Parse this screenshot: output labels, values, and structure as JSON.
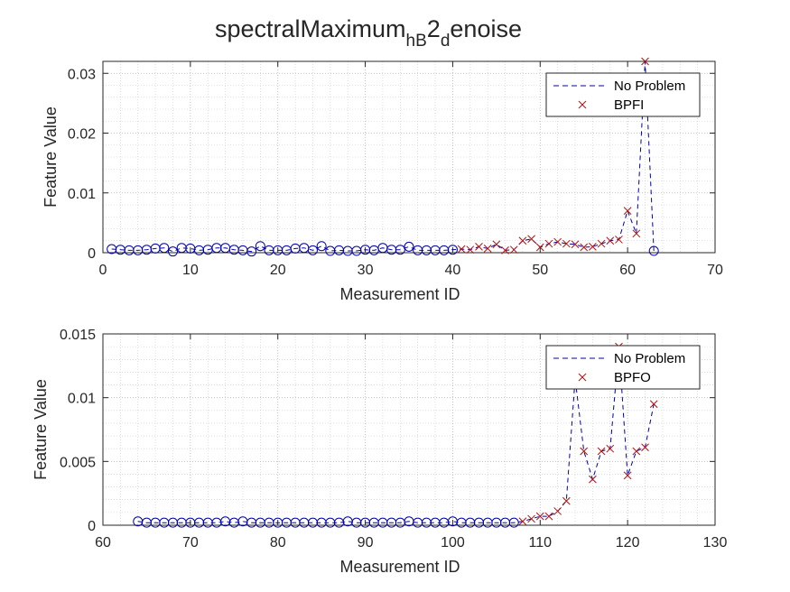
{
  "figure": {
    "title_main": "spectralMaximum",
    "title_sub1": "hB",
    "title_mid": "2",
    "title_sub2": "d",
    "title_end": "enoise"
  },
  "chart_data": [
    {
      "type": "line",
      "xlabel": "Measurement ID",
      "ylabel": "Feature Value",
      "xlim": [
        0,
        70
      ],
      "ylim": [
        0,
        0.032
      ],
      "xticks": [
        0,
        10,
        20,
        30,
        40,
        50,
        60,
        70
      ],
      "xtick_labels": [
        "0",
        "10",
        "20",
        "30",
        "40",
        "50",
        "60",
        "70"
      ],
      "yticks": [
        0,
        0.01,
        0.02,
        0.03
      ],
      "ytick_labels": [
        "0",
        "0.01",
        "0.02",
        "0.03"
      ],
      "grid": true,
      "minor_grid": true,
      "legend_position": "top-right",
      "colors": {
        "line": "#0000aa",
        "circle": "#0000aa",
        "cross": "#b01010"
      },
      "series": [
        {
          "name": "No Problem",
          "style": "dashed-line-circle",
          "x": [
            1,
            2,
            3,
            4,
            5,
            6,
            7,
            8,
            9,
            10,
            11,
            12,
            13,
            14,
            15,
            16,
            17,
            18,
            19,
            20,
            21,
            22,
            23,
            24,
            25,
            26,
            27,
            28,
            29,
            30,
            31,
            32,
            33,
            34,
            35,
            36,
            37,
            38,
            39,
            40
          ],
          "values": [
            0.0006,
            0.0005,
            0.0004,
            0.0004,
            0.0005,
            0.0007,
            0.0008,
            0.0002,
            0.0008,
            0.0007,
            0.0004,
            0.0005,
            0.0008,
            0.0008,
            0.0005,
            0.0004,
            0.0002,
            0.0011,
            0.0004,
            0.0004,
            0.0004,
            0.0007,
            0.0008,
            0.0004,
            0.0011,
            0.0003,
            0.0004,
            0.0003,
            0.0003,
            0.0005,
            0.0004,
            0.0008,
            0.0005,
            0.0005,
            0.001,
            0.0004,
            0.0004,
            0.0004,
            0.0004,
            0.0005
          ]
        },
        {
          "name": "BPFI",
          "style": "dashed-line-cross",
          "x": [
            41,
            42,
            43,
            44,
            45,
            46,
            47,
            48,
            49,
            50,
            51,
            52,
            53,
            54,
            55,
            56,
            57,
            58,
            59,
            60,
            61,
            62
          ],
          "values": [
            0.0006,
            0.0005,
            0.001,
            0.0007,
            0.0014,
            0.0004,
            0.0005,
            0.002,
            0.0023,
            0.0009,
            0.0015,
            0.0018,
            0.0015,
            0.0014,
            0.0009,
            0.001,
            0.0015,
            0.002,
            0.0022,
            0.007,
            0.0032,
            0.032
          ]
        },
        {
          "name": "",
          "style": "dashed-line-circle",
          "x": [
            63
          ],
          "values": [
            0.0003
          ]
        }
      ]
    },
    {
      "type": "line",
      "xlabel": "Measurement ID",
      "ylabel": "Feature Value",
      "xlim": [
        60,
        130
      ],
      "ylim": [
        0,
        0.015
      ],
      "xticks": [
        60,
        70,
        80,
        90,
        100,
        110,
        120,
        130
      ],
      "xtick_labels": [
        "60",
        "70",
        "80",
        "90",
        "100",
        "110",
        "120",
        "130"
      ],
      "yticks": [
        0,
        0.005,
        0.01,
        0.015
      ],
      "ytick_labels": [
        "0",
        "0.005",
        "0.01",
        "0.015"
      ],
      "grid": true,
      "minor_grid": true,
      "legend_position": "top-right",
      "colors": {
        "line": "#0000aa",
        "circle": "#0000aa",
        "cross": "#b01010"
      },
      "series": [
        {
          "name": "No Problem",
          "style": "dashed-line-circle",
          "x": [
            64,
            65,
            66,
            67,
            68,
            69,
            70,
            71,
            72,
            73,
            74,
            75,
            76,
            77,
            78,
            79,
            80,
            81,
            82,
            83,
            84,
            85,
            86,
            87,
            88,
            89,
            90,
            91,
            92,
            93,
            94,
            95,
            96,
            97,
            98,
            99,
            100,
            101,
            102,
            103,
            104,
            105,
            106,
            107
          ],
          "values": [
            0.0003,
            0.0002,
            0.0002,
            0.0002,
            0.0002,
            0.0002,
            0.0002,
            0.0002,
            0.0002,
            0.0002,
            0.0003,
            0.0002,
            0.0003,
            0.0002,
            0.0002,
            0.0002,
            0.0002,
            0.0002,
            0.0002,
            0.0002,
            0.0002,
            0.0002,
            0.0002,
            0.0002,
            0.0003,
            0.0002,
            0.0002,
            0.0002,
            0.0002,
            0.0002,
            0.0002,
            0.0003,
            0.0002,
            0.0002,
            0.0002,
            0.0002,
            0.0003,
            0.0002,
            0.0002,
            0.0002,
            0.0002,
            0.0002,
            0.0002,
            0.0002
          ]
        },
        {
          "name": "BPFO",
          "style": "dashed-line-cross",
          "x": [
            108,
            109,
            110,
            111,
            112,
            113,
            114,
            115,
            116,
            117,
            118,
            119,
            120,
            121,
            122,
            123
          ],
          "values": [
            0.0003,
            0.0005,
            0.0007,
            0.0007,
            0.0011,
            0.0019,
            0.0115,
            0.0058,
            0.0036,
            0.0058,
            0.006,
            0.014,
            0.0039,
            0.0058,
            0.0061,
            0.0095
          ]
        }
      ]
    }
  ]
}
